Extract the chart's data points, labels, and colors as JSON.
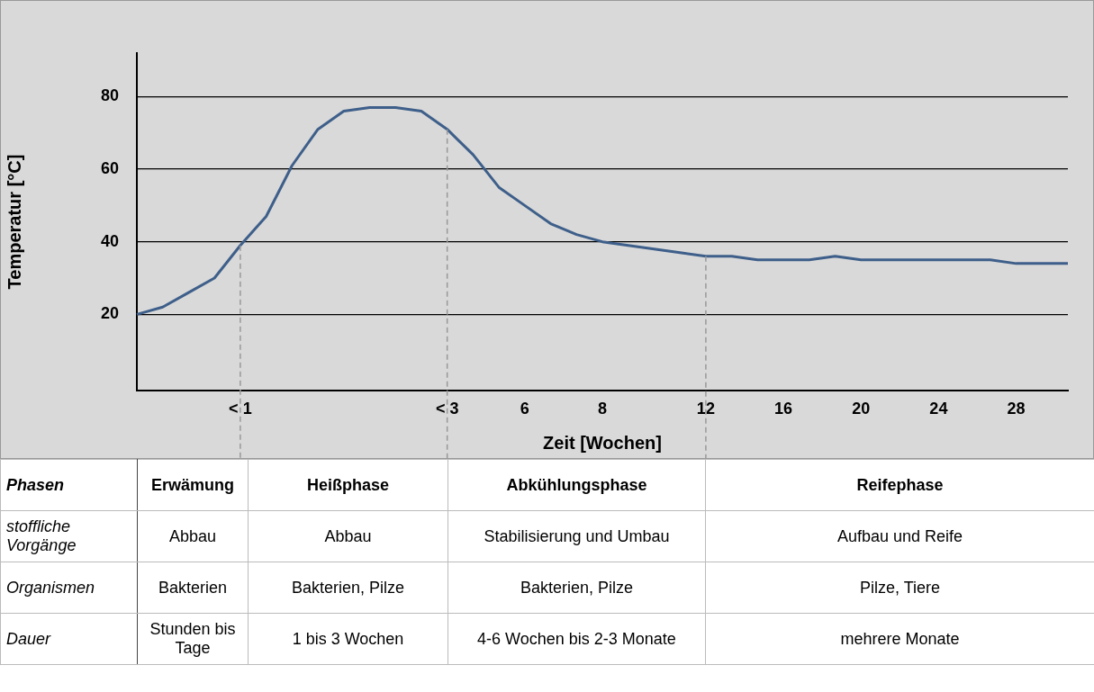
{
  "chart_data": {
    "type": "line",
    "xlabel": "Zeit [Wochen]",
    "ylabel": "Temperatur [°C]",
    "categories": [
      null,
      null,
      null,
      null,
      "< 1",
      null,
      null,
      null,
      null,
      null,
      null,
      null,
      "< 3",
      null,
      null,
      "6",
      null,
      null,
      "8",
      null,
      null,
      null,
      "12",
      null,
      null,
      "16",
      null,
      null,
      "20",
      null,
      null,
      "24",
      null,
      null,
      "28",
      null,
      null
    ],
    "series": [
      {
        "color": "#3e5f8a",
        "values": [
          20,
          22,
          26,
          30,
          39,
          47,
          61,
          71,
          76,
          77,
          77,
          76,
          71,
          64,
          55,
          50,
          45,
          42,
          40,
          39,
          38,
          37,
          36,
          36,
          35,
          35,
          35,
          36,
          35,
          35,
          35,
          35,
          35,
          35,
          34,
          34,
          34
        ]
      }
    ],
    "ylim": [
      -1,
      92
    ],
    "yticks": [
      20,
      40,
      60,
      80
    ],
    "grid": "y",
    "marker": "none",
    "line_style": "solid",
    "ref_lines": [
      {
        "axis": "x",
        "value": "< 1",
        "color": "#999999",
        "line_style": "dashed"
      },
      {
        "axis": "x",
        "value": "< 3",
        "color": "#999999",
        "line_style": "dashed"
      },
      {
        "axis": "x",
        "value": "12",
        "color": "#999999",
        "line_style": "dashed"
      }
    ],
    "annotations": [
      "Phasen",
      "Erwämung",
      "Heißphase",
      "Abkühlungsphase",
      "Reifephase",
      "stoffliche Vorgänge",
      "Abbau",
      "Abbau",
      "Stabilisierung und Umbau",
      "Aufbau und Reife",
      "Organismen",
      "Bakterien",
      "Bakterien, Pilze",
      "Bakterien, Pilze",
      "Pilze, Tiere",
      "Dauer",
      "Stunden bis Tage",
      "1 bis 3 Wochen",
      "4-6 Wochen bis 2-3 Monate",
      "mehrere Monate"
    ]
  }
}
